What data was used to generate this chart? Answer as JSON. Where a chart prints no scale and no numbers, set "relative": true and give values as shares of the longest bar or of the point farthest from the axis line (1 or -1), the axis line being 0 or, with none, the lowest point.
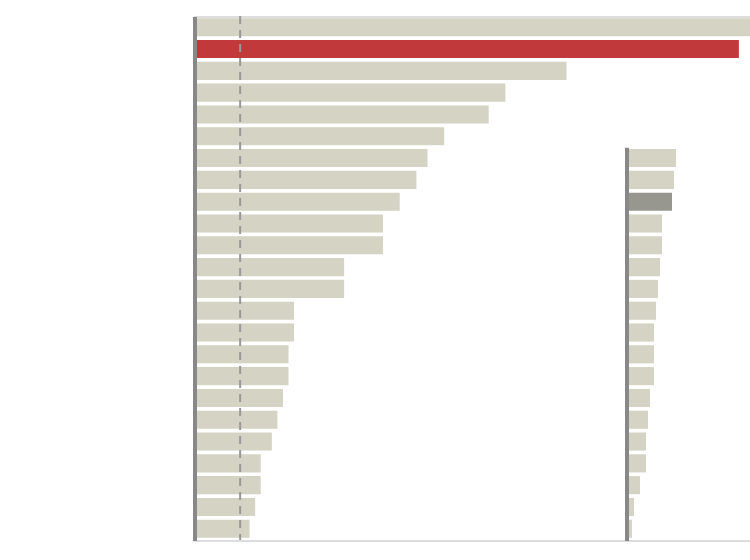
{
  "chart_data": [
    {
      "type": "bar",
      "orientation": "horizontal",
      "relative": true,
      "categories": [
        null,
        null,
        null,
        null,
        null,
        null,
        null,
        null,
        null,
        null,
        null,
        null,
        null,
        null,
        null,
        null,
        null,
        null,
        null,
        null,
        null,
        null,
        null,
        null
      ],
      "values": [
        1,
        0.98,
        0.67,
        0.56,
        0.53,
        0.45,
        0.42,
        0.4,
        0.37,
        0.34,
        0.34,
        0.27,
        0.27,
        0.18,
        0.18,
        0.17,
        0.17,
        0.16,
        0.15,
        0.14,
        0.12,
        0.12,
        0.11,
        0.1
      ],
      "colors": [
        "#d4d3c4",
        "#c2393c",
        "#d4d3c4",
        "#d4d3c4",
        "#d4d3c4",
        "#d4d3c4",
        "#d4d3c4",
        "#d4d3c4",
        "#d4d3c4",
        "#d4d3c4",
        "#d4d3c4",
        "#d4d3c4",
        "#d4d3c4",
        "#d4d3c4",
        "#d4d3c4",
        "#d4d3c4",
        "#d4d3c4",
        "#d4d3c4",
        "#d4d3c4",
        "#d4d3c4",
        "#d4d3c4",
        "#d4d3c4",
        "#d4d3c4",
        "#d4d3c4"
      ],
      "ref_lines": [
        {
          "axis": "x",
          "value": 0.083,
          "color": "#999999",
          "line_style": "dashed"
        }
      ]
    },
    {
      "type": "bar",
      "orientation": "horizontal",
      "relative": true,
      "categories": [
        null,
        null,
        null,
        null,
        null,
        null,
        null,
        null,
        null,
        null,
        null,
        null,
        null,
        null,
        null,
        null,
        null,
        null,
        null,
        null,
        null,
        null,
        null,
        null
      ],
      "values": [
        null,
        null,
        null,
        null,
        null,
        null,
        1,
        0.96,
        0.92,
        0.72,
        0.72,
        0.68,
        0.64,
        0.6,
        0.56,
        0.56,
        0.56,
        0.48,
        0.44,
        0.4,
        0.4,
        0.28,
        0.16,
        0.12
      ],
      "colors": [
        "#d4d3c4",
        "#d4d3c4",
        "#d4d3c4",
        "#d4d3c4",
        "#d4d3c4",
        "#d4d3c4",
        "#d4d3c4",
        "#d4d3c4",
        "#979790",
        "#d4d3c4",
        "#d4d3c4",
        "#d4d3c4",
        "#d4d3c4",
        "#d4d3c4",
        "#d4d3c4",
        "#d4d3c4",
        "#d4d3c4",
        "#d4d3c4",
        "#d4d3c4",
        "#d4d3c4",
        "#d4d3c4",
        "#d4d3c4",
        "#d4d3c4",
        "#d4d3c4"
      ]
    }
  ]
}
